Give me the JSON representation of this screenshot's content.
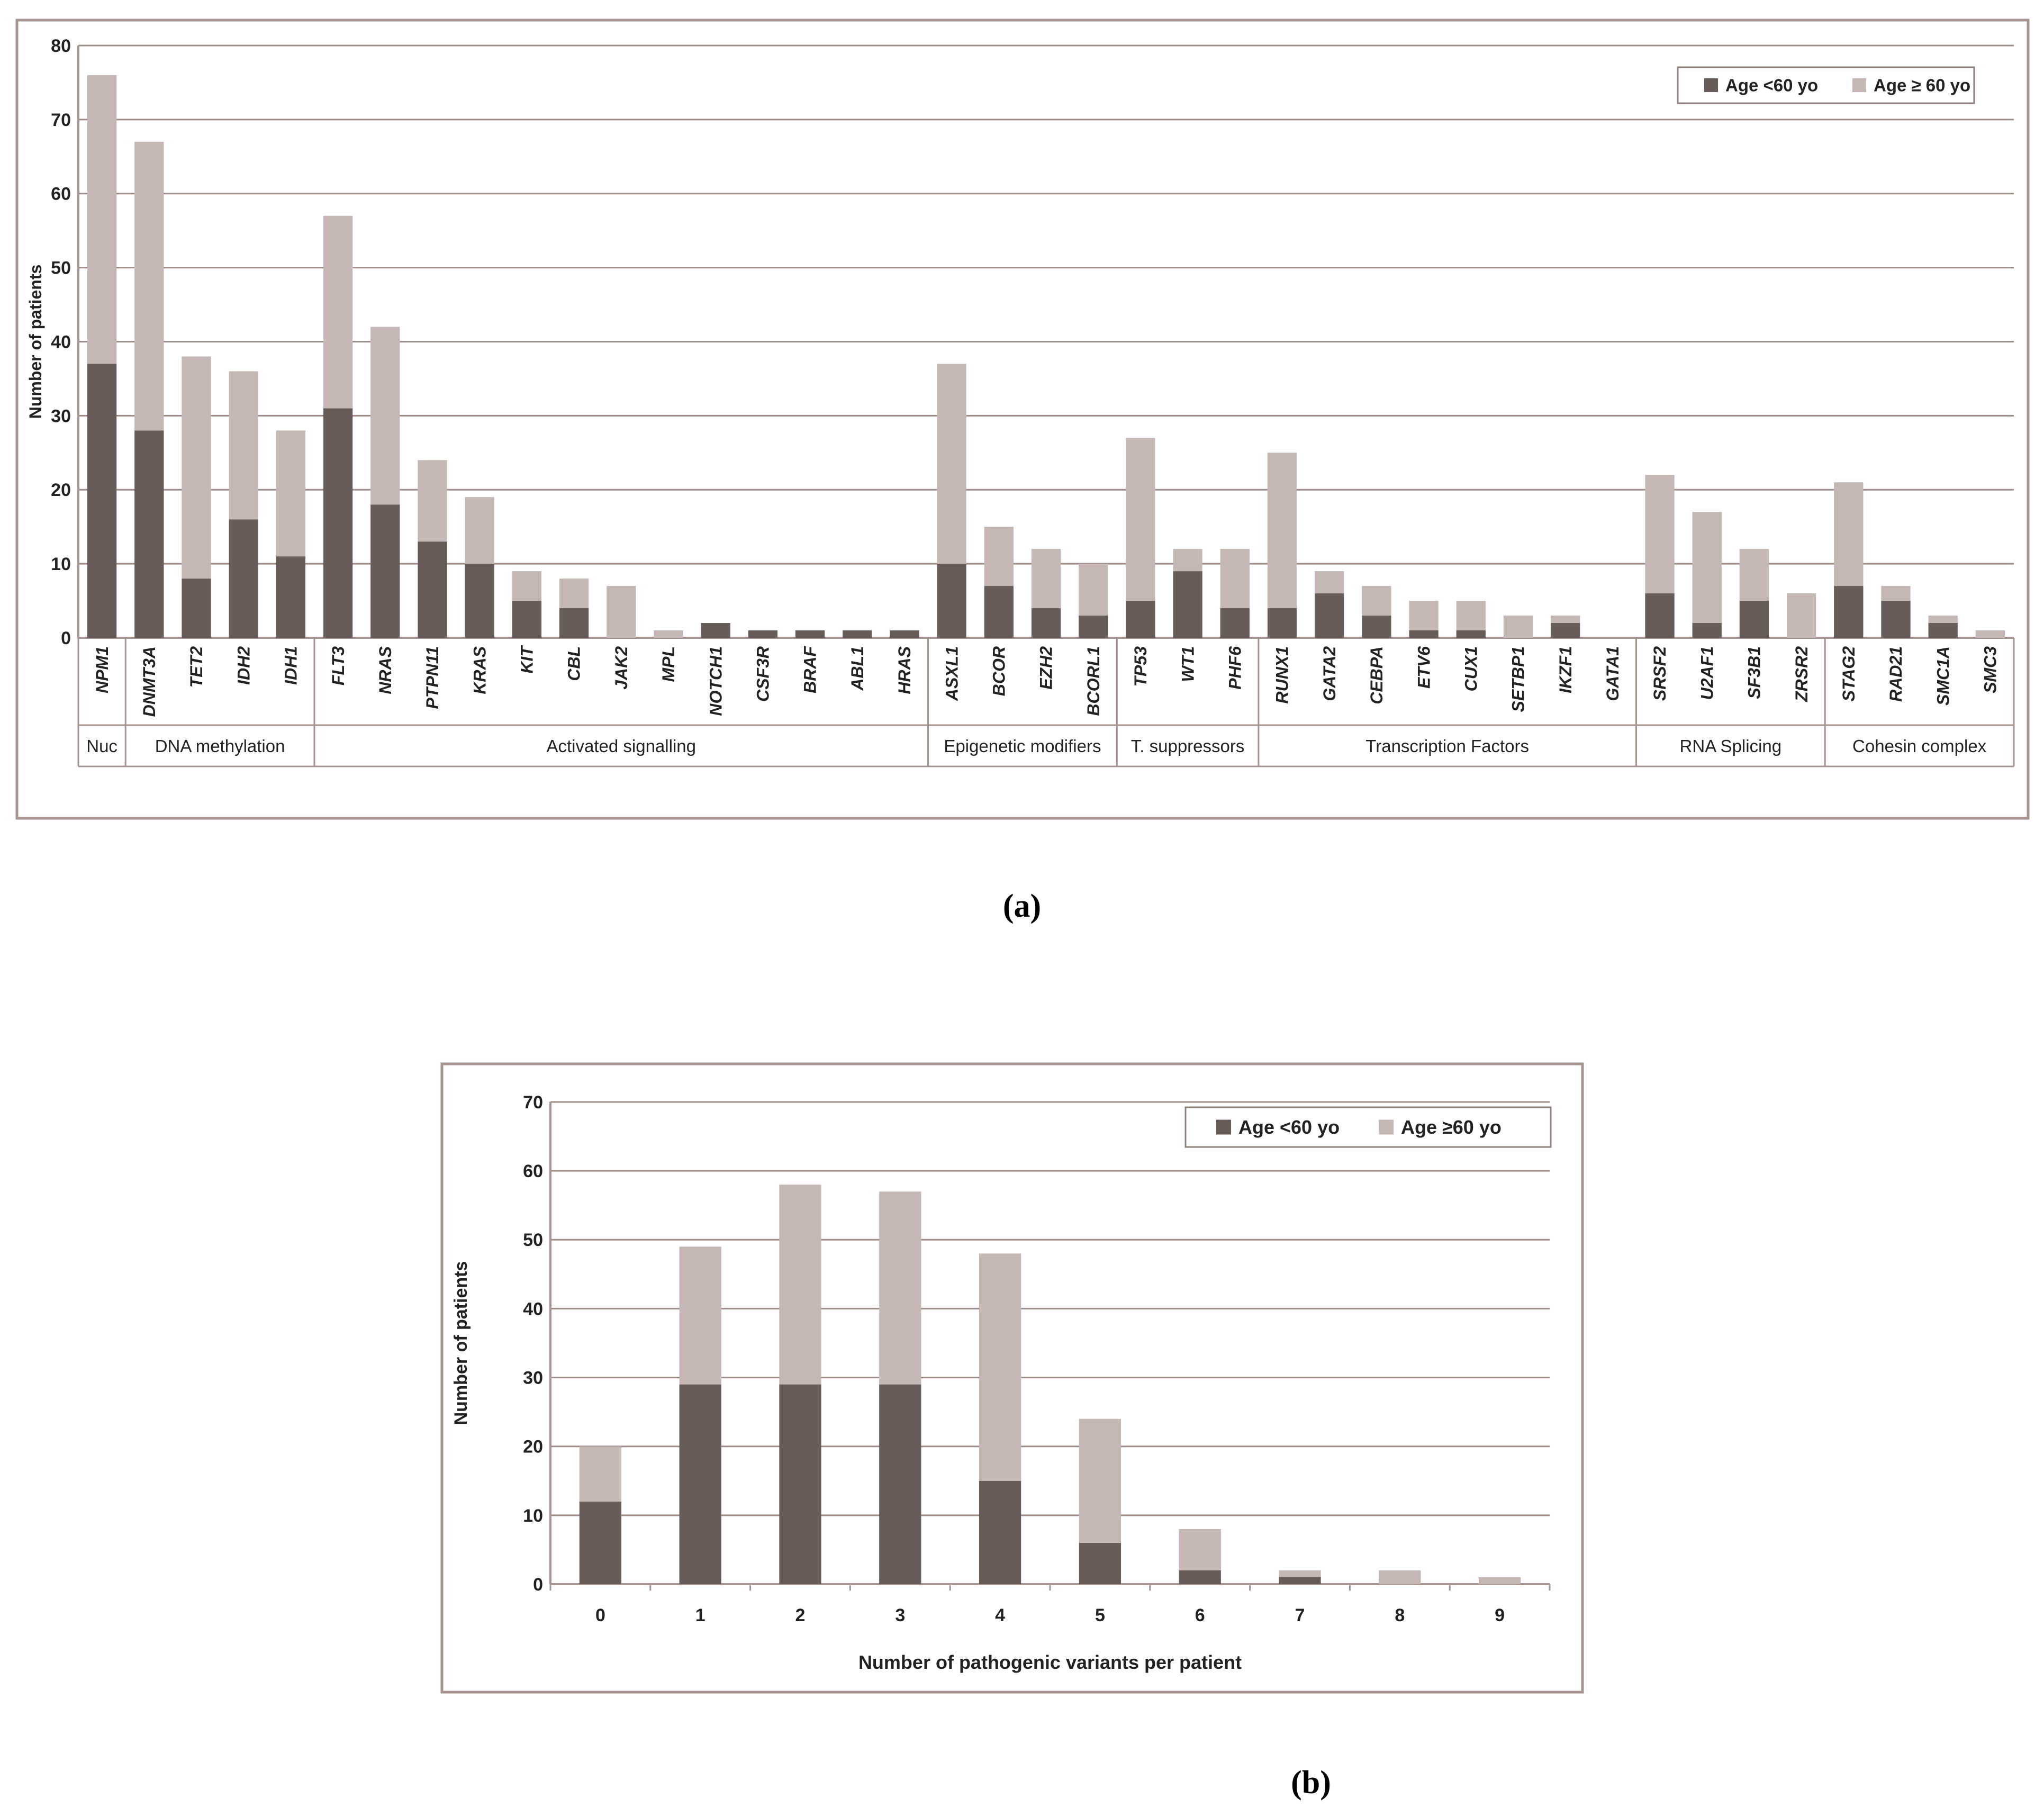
{
  "chart_data": [
    {
      "type": "bar",
      "stacked": true,
      "caption": "(a)",
      "ylabel": "Number of patients",
      "ylim": [
        0,
        80
      ],
      "yticks": [
        0,
        10,
        20,
        30,
        40,
        50,
        60,
        70,
        80
      ],
      "grid": true,
      "legend_position": "top-right",
      "categories": [
        "NPM1",
        "DNMT3A",
        "TET2",
        "IDH2",
        "IDH1",
        "FLT3",
        "NRAS",
        "PTPN11",
        "KRAS",
        "KIT",
        "CBL",
        "JAK2",
        "MPL",
        "NOTCH1",
        "CSF3R",
        "BRAF",
        "ABL1",
        "HRAS",
        "ASXL1",
        "BCOR",
        "EZH2",
        "BCORL1",
        "TP53",
        "WT1",
        "PHF6",
        "RUNX1",
        "GATA2",
        "CEBPA",
        "ETV6",
        "CUX1",
        "SETBP1",
        "IKZF1",
        "GATA1",
        "SRSF2",
        "U2AF1",
        "SF3B1",
        "ZRSR2",
        "STAG2",
        "RAD21",
        "SMC1A",
        "SMC3"
      ],
      "series": [
        {
          "name": "Age <60 yo",
          "color": "#675c58",
          "values": [
            37,
            28,
            8,
            16,
            11,
            31,
            18,
            13,
            10,
            5,
            4,
            0,
            0,
            2,
            1,
            1,
            1,
            1,
            10,
            7,
            4,
            3,
            5,
            9,
            4,
            4,
            6,
            3,
            1,
            1,
            0,
            2,
            0,
            6,
            2,
            5,
            0,
            7,
            5,
            2,
            0
          ]
        },
        {
          "name": "Age ≥ 60 yo",
          "color": "#c5b8b4",
          "values": [
            39,
            39,
            30,
            20,
            17,
            26,
            24,
            11,
            9,
            4,
            4,
            7,
            1,
            0,
            0,
            0,
            0,
            0,
            27,
            8,
            8,
            7,
            22,
            3,
            8,
            21,
            3,
            4,
            4,
            4,
            3,
            1,
            0,
            16,
            15,
            7,
            6,
            14,
            2,
            1,
            1
          ]
        }
      ],
      "groups": [
        {
          "label": "Nuc",
          "count": 1
        },
        {
          "label": "DNA methylation",
          "count": 4
        },
        {
          "label": "Activated signalling",
          "count": 13
        },
        {
          "label": "Epigenetic modifiers",
          "count": 4
        },
        {
          "label": "T. suppressors",
          "count": 3
        },
        {
          "label": "Transcription Factors",
          "count": 8
        },
        {
          "label": "RNA Splicing",
          "count": 4
        },
        {
          "label": "Cohesin complex",
          "count": 4
        }
      ]
    },
    {
      "type": "bar",
      "stacked": true,
      "caption": "(b)",
      "xlabel": "Number of pathogenic variants per patient",
      "ylabel": "Number of patients",
      "ylim": [
        0,
        70
      ],
      "yticks": [
        0,
        10,
        20,
        30,
        40,
        50,
        60,
        70
      ],
      "grid": true,
      "legend_position": "top-right",
      "categories": [
        "0",
        "1",
        "2",
        "3",
        "4",
        "5",
        "6",
        "7",
        "8",
        "9"
      ],
      "series": [
        {
          "name": "Age <60 yo",
          "color": "#675c58",
          "values": [
            12,
            29,
            29,
            29,
            15,
            6,
            2,
            1,
            0,
            0
          ]
        },
        {
          "name": "Age ≥60 yo",
          "color": "#c5b8b4",
          "values": [
            8,
            20,
            29,
            28,
            33,
            18,
            6,
            1,
            2,
            1
          ]
        }
      ]
    }
  ]
}
